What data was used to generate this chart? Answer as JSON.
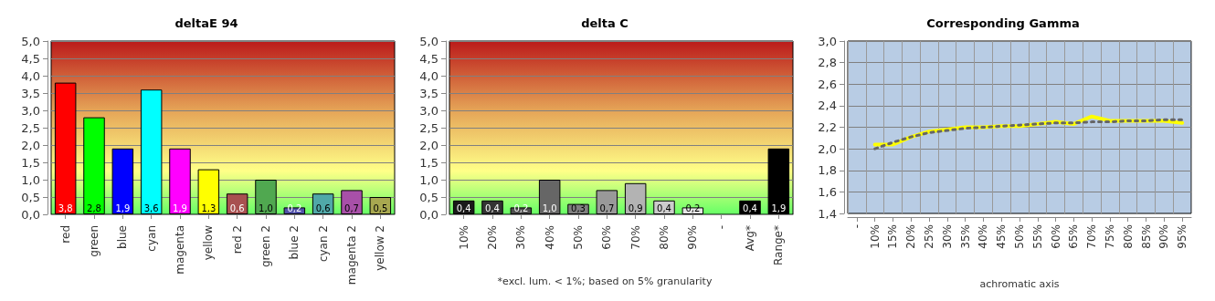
{
  "chart_data": [
    {
      "type": "bar",
      "title": "deltaE 94",
      "categories": [
        "red",
        "green",
        "blue",
        "cyan",
        "magenta",
        "yellow",
        "red 2",
        "green 2",
        "blue 2",
        "cyan 2",
        "magenta 2",
        "yellow 2"
      ],
      "values": [
        3.8,
        2.8,
        1.9,
        3.6,
        1.9,
        1.3,
        0.6,
        1.0,
        0.2,
        0.6,
        0.7,
        0.5
      ],
      "value_labels": [
        "3,8",
        "2,8",
        "1,9",
        "3,6",
        "1,9",
        "1,3",
        "0,6",
        "1,0",
        "0,2",
        "0,6",
        "0,7",
        "0,5"
      ],
      "colors": [
        "#ff0000",
        "#00ff00",
        "#0000ff",
        "#00ffff",
        "#ff00ff",
        "#ffff00",
        "#a85050",
        "#50a850",
        "#5050a8",
        "#50a8a8",
        "#a850a8",
        "#a8a850"
      ],
      "ylim": [
        0,
        5
      ],
      "yticks": [
        {
          "value": 0,
          "label": "0,0"
        },
        {
          "value": 0.5,
          "label": "0,5"
        },
        {
          "value": 1,
          "label": "1,0"
        },
        {
          "value": 1.5,
          "label": "1,5"
        },
        {
          "value": 2,
          "label": "2,0"
        },
        {
          "value": 2.5,
          "label": "2,5"
        },
        {
          "value": 3,
          "label": "3,0"
        },
        {
          "value": 3.5,
          "label": "3,5"
        },
        {
          "value": 4,
          "label": "4,0"
        },
        {
          "value": 4.5,
          "label": "4,5"
        },
        {
          "value": 5,
          "label": "5,0"
        }
      ],
      "grid": "y"
    },
    {
      "type": "bar",
      "title": "delta C",
      "categories": [
        "10%",
        "20%",
        "30%",
        "40%",
        "50%",
        "60%",
        "70%",
        "80%",
        "90%",
        "-",
        "Avg*",
        "Range*"
      ],
      "values": [
        0.4,
        0.4,
        0.2,
        1.0,
        0.3,
        0.7,
        0.9,
        0.4,
        0.2,
        null,
        0.4,
        1.9
      ],
      "value_labels": [
        "0,4",
        "0,4",
        "0,2",
        "1,0",
        "0,3",
        "0,7",
        "0,9",
        "0,4",
        "0,2",
        null,
        "0,4",
        "1,9"
      ],
      "colors": [
        "#1a1a1a",
        "#333333",
        "#4d4d4d",
        "#666666",
        "#808080",
        "#999999",
        "#b3b3b3",
        "#cccccc",
        "#e6e6e6",
        null,
        "#000000",
        "#000000"
      ],
      "ylim": [
        0,
        5
      ],
      "yticks": [
        {
          "value": 0,
          "label": "0,0"
        },
        {
          "value": 0.5,
          "label": "0,5"
        },
        {
          "value": 1,
          "label": "1,0"
        },
        {
          "value": 1.5,
          "label": "1,5"
        },
        {
          "value": 2,
          "label": "2,0"
        },
        {
          "value": 2.5,
          "label": "2,5"
        },
        {
          "value": 3,
          "label": "3,0"
        },
        {
          "value": 3.5,
          "label": "3,5"
        },
        {
          "value": 4,
          "label": "4,0"
        },
        {
          "value": 4.5,
          "label": "4,5"
        },
        {
          "value": 5,
          "label": "5,0"
        }
      ],
      "annotations": [
        "*excl. lum. < 1%; based on 5% granularity"
      ],
      "grid": "y"
    },
    {
      "type": "line",
      "title": "Corresponding Gamma",
      "xlabel": "achromatic axis",
      "categories": [
        "-",
        "10%",
        "15%",
        "20%",
        "25%",
        "30%",
        "35%",
        "40%",
        "45%",
        "50%",
        "55%",
        "60%",
        "65%",
        "70%",
        "75%",
        "80%",
        "85%",
        "90%",
        "95%"
      ],
      "series": [
        {
          "color": "#ffff00",
          "line_style": "solid",
          "values": [
            null,
            2.04,
            2.04,
            2.11,
            2.16,
            2.18,
            2.2,
            2.2,
            2.21,
            2.21,
            2.23,
            2.25,
            2.23,
            2.3,
            2.26,
            2.26,
            2.26,
            2.26,
            2.24
          ]
        },
        {
          "color": "#666666",
          "line_style": "dotted",
          "values": [
            null,
            2.0,
            2.06,
            2.11,
            2.15,
            2.17,
            2.19,
            2.2,
            2.21,
            2.22,
            2.23,
            2.24,
            2.24,
            2.25,
            2.25,
            2.26,
            2.26,
            2.27,
            2.27
          ]
        }
      ],
      "ylim": [
        1.4,
        3.0
      ],
      "yticks": [
        {
          "value": 1.4,
          "label": "1,4"
        },
        {
          "value": 1.6,
          "label": "1,6"
        },
        {
          "value": 1.8,
          "label": "1,8"
        },
        {
          "value": 2.0,
          "label": "2,0"
        },
        {
          "value": 2.2,
          "label": "2,2"
        },
        {
          "value": 2.4,
          "label": "2,4"
        },
        {
          "value": 2.6,
          "label": "2,6"
        },
        {
          "value": 2.8,
          "label": "2,8"
        },
        {
          "value": 3.0,
          "label": "3,0"
        }
      ],
      "grid": true,
      "marker": "none"
    }
  ]
}
